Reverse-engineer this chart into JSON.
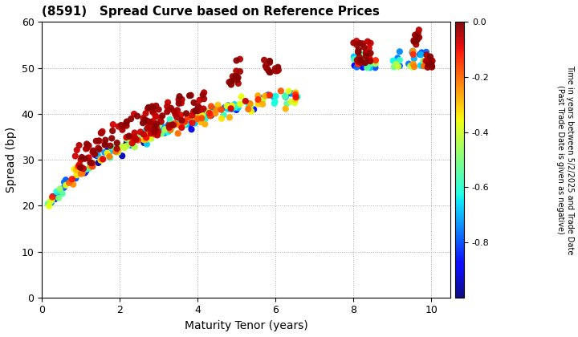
{
  "title": "(8591)   Spread Curve based on Reference Prices",
  "xlabel": "Maturity Tenor (years)",
  "ylabel": "Spread (bp)",
  "colorbar_label_line1": "Time in years between 5/2/2025 and Trade Date",
  "colorbar_label_line2": "(Past Trade Date is given as negative)",
  "xlim": [
    0,
    10.5
  ],
  "ylim": [
    0,
    60
  ],
  "xticks": [
    0,
    2,
    4,
    6,
    8,
    10
  ],
  "yticks": [
    0,
    10,
    20,
    30,
    40,
    50,
    60
  ],
  "cmap": "jet",
  "vmin": -1.0,
  "vmax": 0.0,
  "colorbar_ticks": [
    0.0,
    -0.2,
    -0.4,
    -0.6,
    -0.8
  ],
  "background_color": "#ffffff",
  "grid_color": "#aaaaaa",
  "point_size": 35
}
